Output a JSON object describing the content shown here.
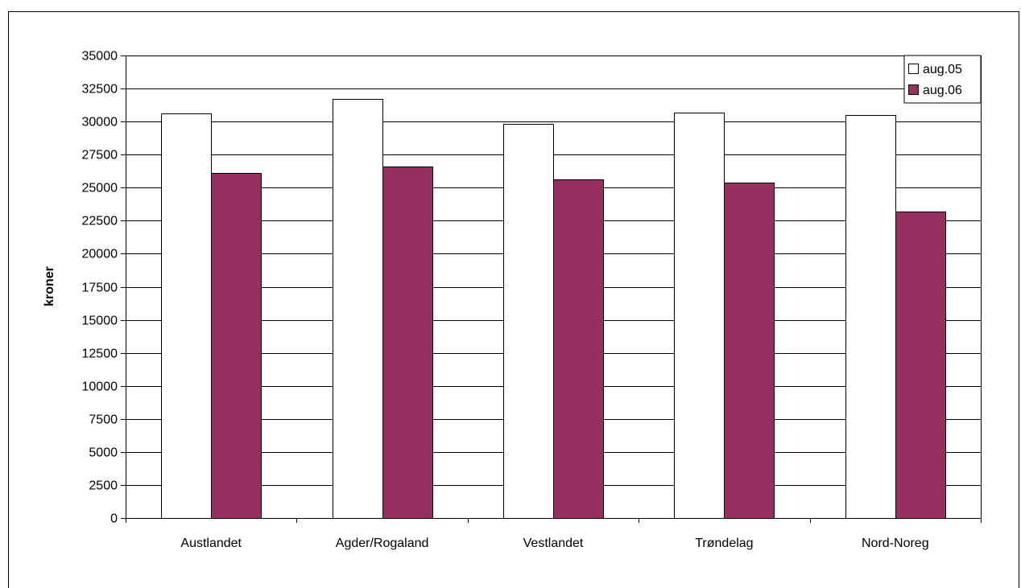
{
  "chart_data": {
    "type": "bar",
    "title": "",
    "xlabel": "",
    "ylabel": "kroner",
    "ylim": [
      0,
      35000
    ],
    "ytick_step": 2500,
    "yticks": [
      "0",
      "2500",
      "5000",
      "7500",
      "10000",
      "12500",
      "15000",
      "17500",
      "20000",
      "22500",
      "25000",
      "27500",
      "30000",
      "32500",
      "35000"
    ],
    "grid": true,
    "legend_position": "top-right",
    "categories": [
      "Austlandet",
      "Agder/Rogaland",
      "Vestlandet",
      "Trøndelag",
      "Nord-Noreg"
    ],
    "series": [
      {
        "name": "aug.05",
        "color": "#ffffff",
        "values": [
          30600,
          31700,
          29800,
          30700,
          30500
        ]
      },
      {
        "name": "aug.06",
        "color": "#953060",
        "values": [
          26100,
          26600,
          25600,
          25400,
          23200
        ]
      }
    ]
  }
}
